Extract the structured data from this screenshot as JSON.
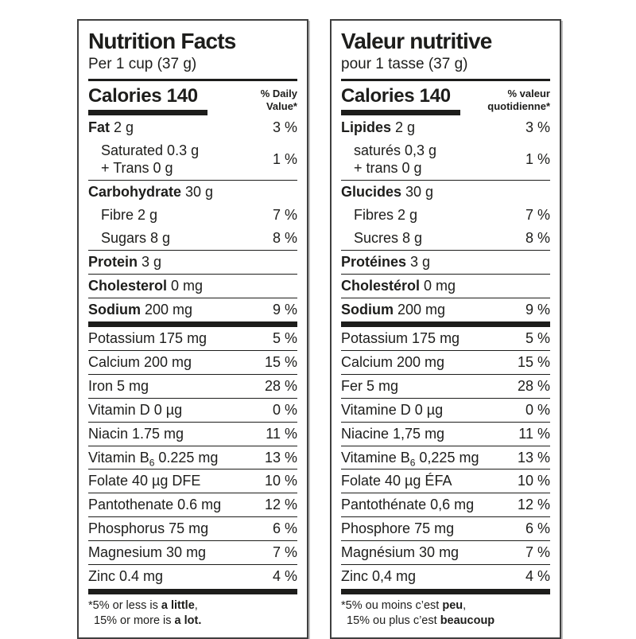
{
  "colors": {
    "text": "#1d1d1b",
    "rule": "#1d1d1b",
    "panel_border": "#3f3f3f",
    "background": "#ffffff"
  },
  "panels": [
    {
      "id": "en",
      "title": "Nutrition Facts",
      "serving": "Per 1 cup (37 g)",
      "calories_label": "Calories 140",
      "dv_header_line1": "% Daily",
      "dv_header_line2": "Value*",
      "rows": [
        {
          "b": "Fat",
          "r": " 2 g",
          "dv": "3 %",
          "top": "none"
        },
        {
          "r": "Saturated 0.3 g",
          "l2": "+ Trans 0 g",
          "dv": "1 %",
          "top": "none",
          "ind": true
        },
        {
          "b": "Carbohydrate",
          "r": " 30 g",
          "dv": "",
          "top": "thin"
        },
        {
          "r": "Fibre 2 g",
          "dv": "7 %",
          "top": "none",
          "ind": true
        },
        {
          "r": "Sugars 8 g",
          "dv": "8 %",
          "top": "none",
          "ind": true
        },
        {
          "b": "Protein",
          "r": " 3 g",
          "dv": "",
          "top": "thin"
        },
        {
          "b": "Cholesterol",
          "r": " 0 mg",
          "dv": "",
          "top": "thin"
        },
        {
          "b": "Sodium",
          "r": " 200 mg",
          "dv": "9 %",
          "top": "thin"
        },
        {
          "r": "Potassium 175 mg",
          "dv": "5 %",
          "top": "thick"
        },
        {
          "r": "Calcium 200 mg",
          "dv": "15 %",
          "top": "thin"
        },
        {
          "r": "Iron 5 mg",
          "dv": "28 %",
          "top": "thin"
        },
        {
          "r": "Vitamin D 0 µg",
          "dv": "0 %",
          "top": "thin"
        },
        {
          "r": "Niacin 1.75 mg",
          "dv": "11 %",
          "top": "thin"
        },
        {
          "r": "Vitamin B",
          "sub": "6",
          "r2": " 0.225 mg",
          "dv": "13 %",
          "top": "thin"
        },
        {
          "r": "Folate 40 µg DFE",
          "dv": "10 %",
          "top": "thin"
        },
        {
          "r": "Pantothenate 0.6 mg",
          "dv": "12 %",
          "top": "thin"
        },
        {
          "r": "Phosphorus 75 mg",
          "dv": "6 %",
          "top": "thin"
        },
        {
          "r": "Magnesium 30 mg",
          "dv": "7 %",
          "top": "thin"
        },
        {
          "r": "Zinc 0.4 mg",
          "dv": "4 %",
          "top": "thin"
        }
      ],
      "footnote": {
        "line1_pre": "*5% or less is ",
        "line1_bold": "a little",
        "line1_post": ",",
        "line2_pre": "15% or more is ",
        "line2_bold": "a lot.",
        "line2_post": ""
      }
    },
    {
      "id": "fr",
      "title": "Valeur nutritive",
      "serving": "pour 1 tasse (37 g)",
      "calories_label": "Calories 140",
      "dv_header_line1": "% valeur",
      "dv_header_line2": "quotidienne*",
      "rows": [
        {
          "b": "Lipides",
          "r": " 2 g",
          "dv": "3 %",
          "top": "none"
        },
        {
          "r": "saturés 0,3 g",
          "l2": "+ trans 0 g",
          "dv": "1 %",
          "top": "none",
          "ind": true
        },
        {
          "b": "Glucides",
          "r": " 30 g",
          "dv": "",
          "top": "thin"
        },
        {
          "r": "Fibres 2 g",
          "dv": "7 %",
          "top": "none",
          "ind": true
        },
        {
          "r": "Sucres 8 g",
          "dv": "8 %",
          "top": "none",
          "ind": true
        },
        {
          "b": "Protéines",
          "r": " 3 g",
          "dv": "",
          "top": "thin"
        },
        {
          "b": "Cholestérol",
          "r": " 0 mg",
          "dv": "",
          "top": "thin"
        },
        {
          "b": "Sodium",
          "r": " 200 mg",
          "dv": "9 %",
          "top": "thin"
        },
        {
          "r": "Potassium 175 mg",
          "dv": "5 %",
          "top": "thick"
        },
        {
          "r": "Calcium 200 mg",
          "dv": "15 %",
          "top": "thin"
        },
        {
          "r": "Fer 5 mg",
          "dv": "28 %",
          "top": "thin"
        },
        {
          "r": "Vitamine D 0 µg",
          "dv": "0 %",
          "top": "thin"
        },
        {
          "r": "Niacine 1,75 mg",
          "dv": "11 %",
          "top": "thin"
        },
        {
          "r": "Vitamine B",
          "sub": "6",
          "r2": " 0,225 mg",
          "dv": "13 %",
          "top": "thin"
        },
        {
          "r": "Folate 40 µg ÉFA",
          "dv": "10 %",
          "top": "thin"
        },
        {
          "r": "Pantothénate 0,6 mg",
          "dv": "12 %",
          "top": "thin"
        },
        {
          "r": "Phosphore 75 mg",
          "dv": "6 %",
          "top": "thin"
        },
        {
          "r": "Magnésium 30 mg",
          "dv": "7 %",
          "top": "thin"
        },
        {
          "r": "Zinc 0,4 mg",
          "dv": "4 %",
          "top": "thin"
        }
      ],
      "footnote": {
        "line1_pre": "*5% ou moins c’est ",
        "line1_bold": "peu",
        "line1_post": ",",
        "line2_pre": "15% ou plus c’est ",
        "line2_bold": "beaucoup",
        "line2_post": ""
      }
    }
  ]
}
